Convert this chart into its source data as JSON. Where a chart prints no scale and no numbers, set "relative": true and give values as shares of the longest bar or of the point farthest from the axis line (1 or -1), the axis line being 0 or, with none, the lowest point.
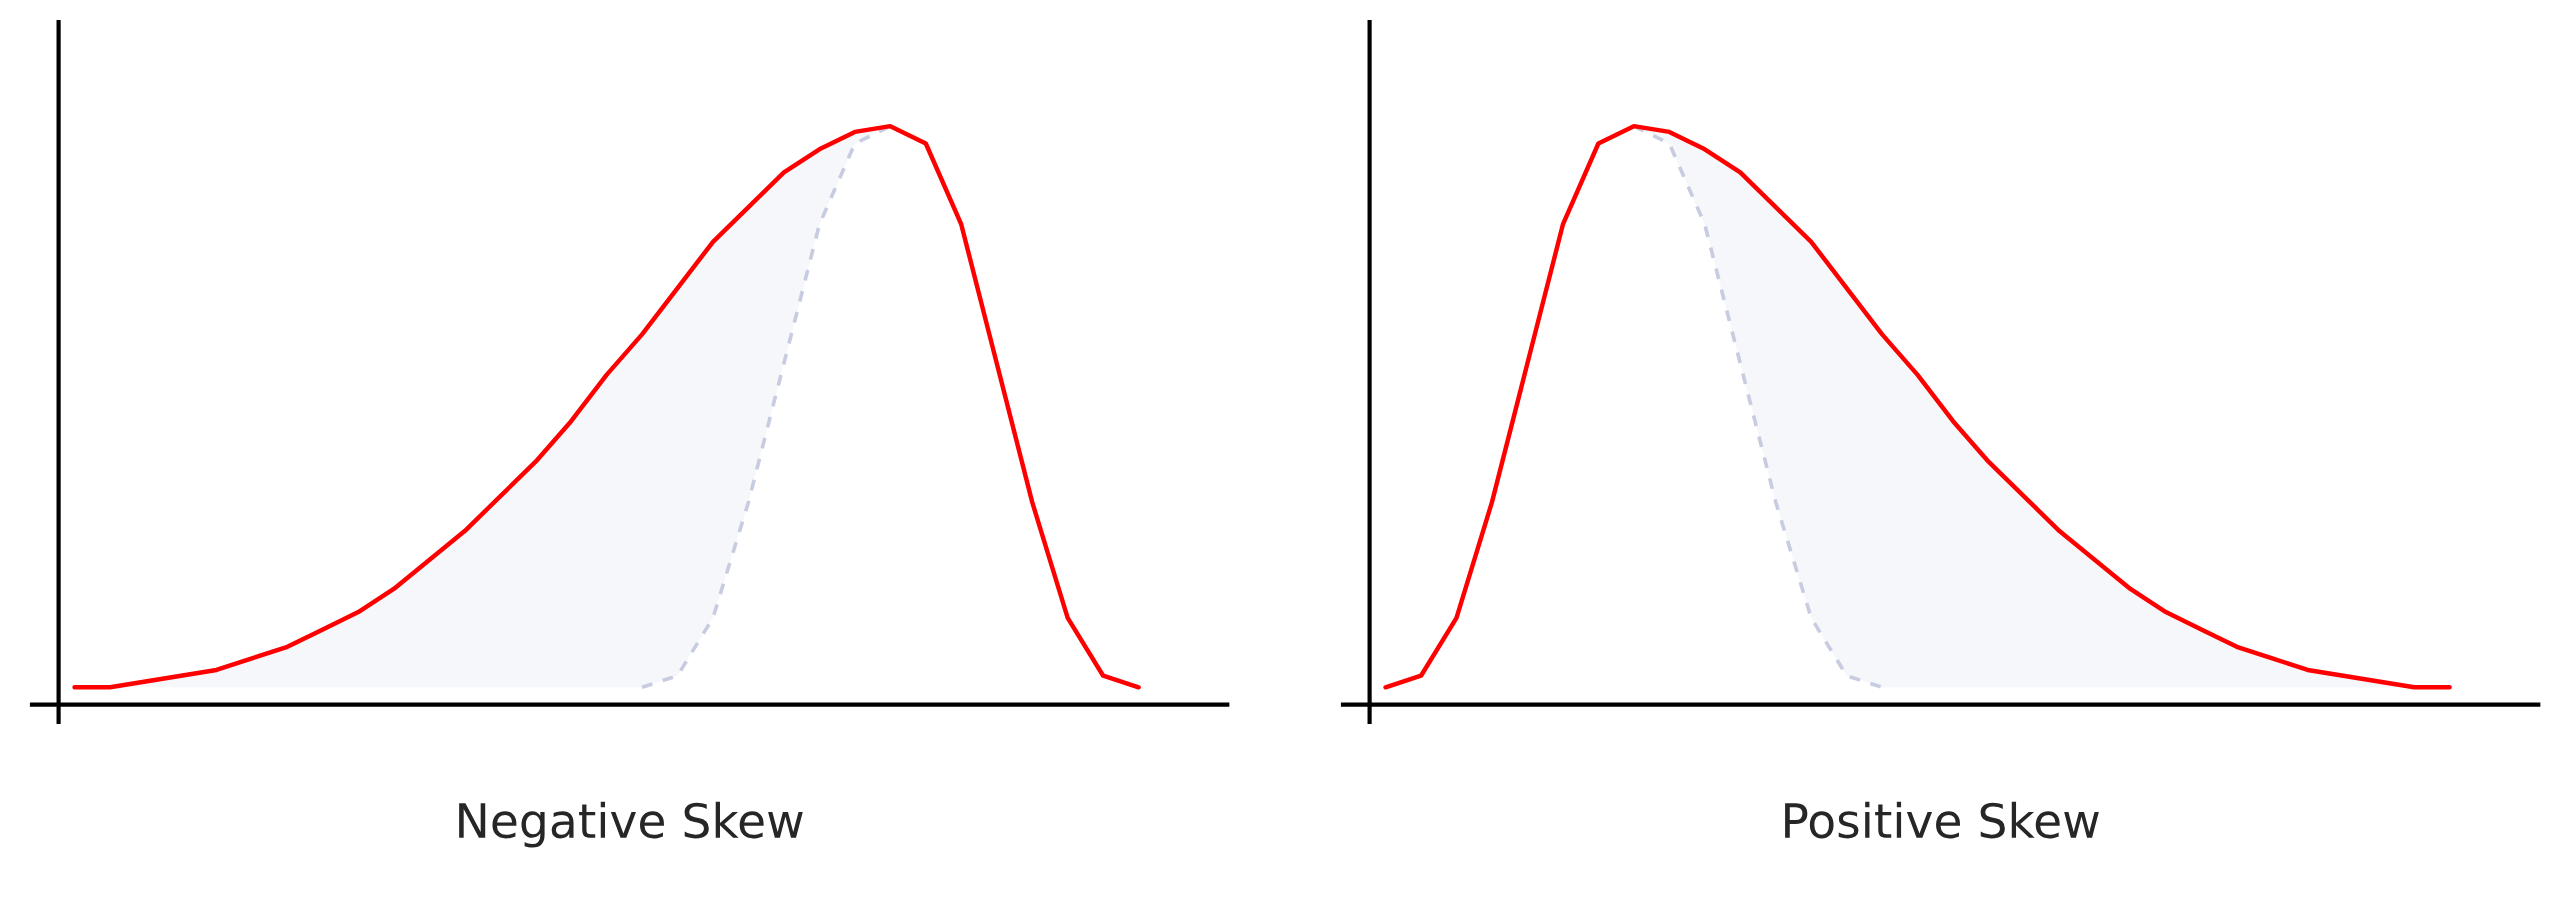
{
  "chart_data": [
    {
      "type": "line",
      "xlabel": "Negative Skew",
      "relative": true,
      "legend": false,
      "tick_labels": false,
      "categories": [
        null,
        null,
        null,
        null,
        null,
        null,
        null,
        null,
        null,
        null,
        null,
        null,
        null,
        null,
        null,
        null,
        null,
        null,
        null,
        null,
        null,
        null,
        null,
        null,
        null,
        null,
        null,
        null,
        null,
        null,
        null
      ],
      "series": [
        {
          "color": "#ff0000",
          "line_style": "solid",
          "values": [
            0.03,
            0.03,
            0.04,
            0.05,
            0.06,
            0.08,
            0.1,
            0.13,
            0.16,
            0.2,
            0.25,
            0.3,
            0.36,
            0.42,
            0.49,
            0.57,
            0.64,
            0.72,
            0.8,
            0.86,
            0.92,
            0.96,
            0.99,
            1,
            0.97,
            0.83,
            0.59,
            0.35,
            0.15,
            0.05,
            0.03
          ],
          "lower": [
            0.03,
            0.03,
            0.03,
            0.03,
            0.03,
            0.03,
            0.03,
            0.03,
            0.03,
            0.03,
            0.03,
            0.03,
            0.03,
            0.03,
            0.03,
            0.03,
            0.03,
            0.05,
            0.15,
            0.35,
            0.59,
            0.83,
            0.97,
            1,
            0.97,
            0.83,
            0.59,
            0.35,
            0.15,
            0.05,
            0.03
          ],
          "upper": [
            0.03,
            0.03,
            0.04,
            0.05,
            0.06,
            0.08,
            0.1,
            0.13,
            0.16,
            0.2,
            0.25,
            0.3,
            0.36,
            0.42,
            0.49,
            0.57,
            0.64,
            0.72,
            0.8,
            0.86,
            0.92,
            0.96,
            0.99,
            1,
            0.97,
            0.83,
            0.59,
            0.35,
            0.15,
            0.05,
            0.03
          ]
        },
        {
          "color": "#c8cce0",
          "line_style": "dashed",
          "values": [
            null,
            null,
            null,
            null,
            null,
            null,
            null,
            null,
            null,
            null,
            null,
            null,
            null,
            null,
            null,
            null,
            0.03,
            0.05,
            0.15,
            0.35,
            0.59,
            0.83,
            0.97,
            1,
            null,
            null,
            null,
            null,
            null,
            null,
            null
          ]
        }
      ]
    },
    {
      "type": "line",
      "xlabel": "Positive Skew",
      "relative": true,
      "legend": false,
      "tick_labels": false,
      "categories": [
        null,
        null,
        null,
        null,
        null,
        null,
        null,
        null,
        null,
        null,
        null,
        null,
        null,
        null,
        null,
        null,
        null,
        null,
        null,
        null,
        null,
        null,
        null,
        null,
        null,
        null,
        null,
        null,
        null,
        null,
        null
      ],
      "series": [
        {
          "color": "#ff0000",
          "line_style": "solid",
          "values": [
            0.03,
            0.05,
            0.15,
            0.35,
            0.59,
            0.83,
            0.97,
            1,
            0.99,
            0.96,
            0.92,
            0.86,
            0.8,
            0.72,
            0.64,
            0.57,
            0.49,
            0.42,
            0.36,
            0.3,
            0.25,
            0.2,
            0.16,
            0.13,
            0.1,
            0.08,
            0.06,
            0.05,
            0.04,
            0.03,
            0.03
          ],
          "lower": [
            0.03,
            0.05,
            0.15,
            0.35,
            0.59,
            0.83,
            0.97,
            1,
            0.97,
            0.83,
            0.59,
            0.35,
            0.15,
            0.05,
            0.03,
            0.03,
            0.03,
            0.03,
            0.03,
            0.03,
            0.03,
            0.03,
            0.03,
            0.03,
            0.03,
            0.03,
            0.03,
            0.03,
            0.03,
            0.03,
            0.03
          ],
          "upper": [
            0.03,
            0.05,
            0.15,
            0.35,
            0.59,
            0.83,
            0.97,
            1,
            0.99,
            0.96,
            0.92,
            0.86,
            0.8,
            0.72,
            0.64,
            0.57,
            0.49,
            0.42,
            0.36,
            0.3,
            0.25,
            0.2,
            0.16,
            0.13,
            0.1,
            0.08,
            0.06,
            0.05,
            0.04,
            0.03,
            0.03
          ]
        },
        {
          "color": "#c8cce0",
          "line_style": "dashed",
          "values": [
            null,
            null,
            null,
            null,
            null,
            null,
            null,
            1,
            0.97,
            0.83,
            0.59,
            0.35,
            0.15,
            0.05,
            0.03,
            null,
            null,
            null,
            null,
            null,
            null,
            null,
            null,
            null,
            null,
            null,
            null,
            null,
            null,
            null,
            null
          ]
        }
      ]
    }
  ]
}
